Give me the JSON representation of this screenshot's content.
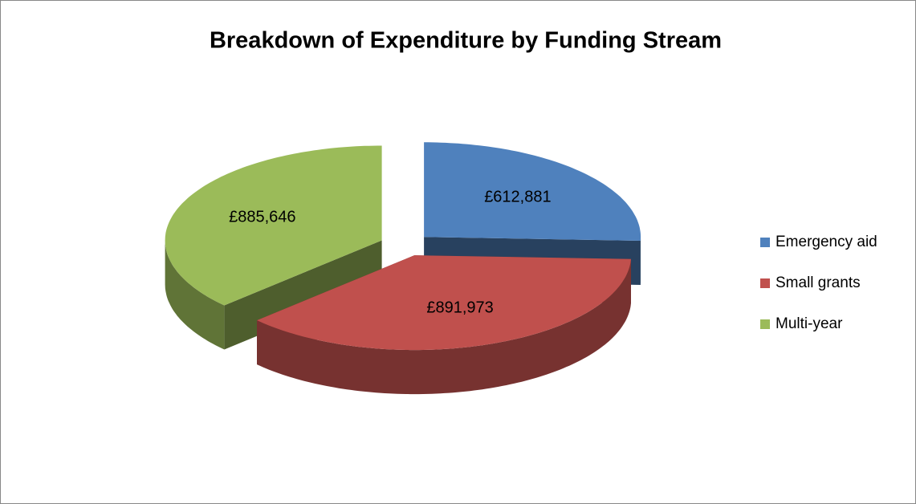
{
  "chart_data": {
    "type": "pie3d",
    "title": "Breakdown of Expenditure by Funding Stream",
    "categories": [
      "Emergency aid",
      "Small grants",
      "Multi-year"
    ],
    "values": [
      612881,
      891973,
      885646
    ],
    "value_labels": [
      "£612,881",
      "£891,973",
      "£885,646"
    ],
    "colors": [
      "#4f81bd",
      "#c0504d",
      "#9bbb59"
    ],
    "legend": "right"
  }
}
